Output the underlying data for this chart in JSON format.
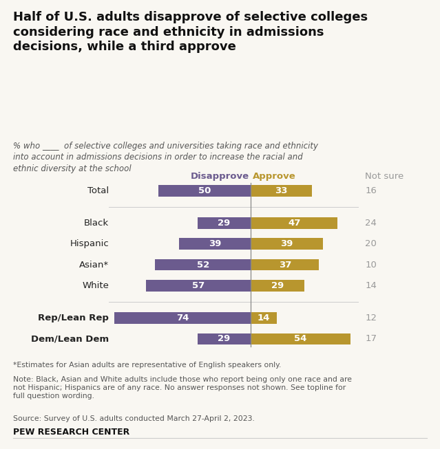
{
  "title": "Half of U.S. adults disapprove of selective colleges\nconsidering race and ethnicity in admissions\ndecisions, while a third approve",
  "subtitle_parts": [
    "% who",
    "of selective colleges and universities taking race and ethnicity\ninto account in admissions decisions in order to increase the racial and\nethnic diversity at the school"
  ],
  "categories": [
    "Total",
    "Black",
    "Hispanic",
    "Asian*",
    "White",
    "Rep/Lean Rep",
    "Dem/Lean Dem"
  ],
  "disapprove": [
    50,
    29,
    39,
    52,
    57,
    74,
    29
  ],
  "approve": [
    33,
    47,
    39,
    37,
    29,
    14,
    54
  ],
  "not_sure": [
    16,
    24,
    20,
    10,
    14,
    12,
    17
  ],
  "disapprove_color": "#6b5b8e",
  "approve_color": "#b8962e",
  "not_sure_color": "#999999",
  "text_color": "#222222",
  "label_color_white": "#ffffff",
  "background_color": "#f9f7f2",
  "footnote1": "*Estimates for Asian adults are representative of English speakers only.",
  "footnote2": "Note: Black, Asian and White adults include those who report being only one race and are\nnot Hispanic; Hispanics are of any race. No answer responses not shown. See topline for\nfull question wording.",
  "footnote3": "Source: Survey of U.S. adults conducted March 27-April 2, 2023.",
  "source_label": "PEW RESEARCH CENTER",
  "col_header_disapprove": "Disapprove",
  "col_header_approve": "Approve",
  "col_header_not_sure": "Not sure",
  "group_bold": [
    5,
    6
  ],
  "separator_after": [
    0,
    4
  ]
}
